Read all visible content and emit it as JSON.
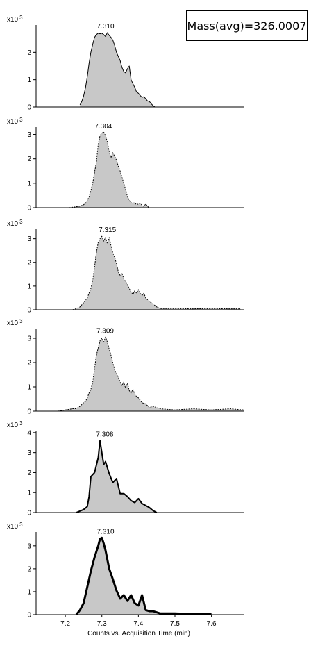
{
  "annotation": "Mass(avg)=326.0007",
  "chart_data": [
    {
      "type": "area",
      "peak_label": "7.310",
      "multiplier_label": "x10",
      "multiplier_exp": "3",
      "ylim": [
        0,
        3
      ],
      "y_ticks": [
        "0",
        "1",
        "2"
      ],
      "line_style": "solid",
      "line_weight": "thin",
      "x": [
        7.24,
        7.245,
        7.25,
        7.255,
        7.26,
        7.265,
        7.27,
        7.275,
        7.28,
        7.285,
        7.29,
        7.295,
        7.3,
        7.305,
        7.31,
        7.315,
        7.32,
        7.325,
        7.33,
        7.335,
        7.34,
        7.345,
        7.35,
        7.355,
        7.36,
        7.365,
        7.37,
        7.375,
        7.38,
        7.385,
        7.39,
        7.395,
        7.4,
        7.405,
        7.41,
        7.415,
        7.42,
        7.425,
        7.43,
        7.435,
        7.44,
        7.445
      ],
      "y": [
        0.08,
        0.2,
        0.4,
        0.7,
        1.1,
        1.6,
        2.0,
        2.3,
        2.55,
        2.65,
        2.7,
        2.68,
        2.7,
        2.65,
        2.58,
        2.72,
        2.62,
        2.55,
        2.45,
        2.25,
        2.0,
        1.85,
        1.7,
        1.45,
        1.3,
        1.25,
        1.4,
        1.5,
        1.0,
        0.85,
        0.72,
        0.55,
        0.5,
        0.42,
        0.35,
        0.38,
        0.3,
        0.22,
        0.2,
        0.12,
        0.05,
        0.0
      ]
    },
    {
      "type": "area",
      "peak_label": "7.304",
      "multiplier_label": "x10",
      "multiplier_exp": "3",
      "ylim": [
        0,
        3.3
      ],
      "y_ticks": [
        "0",
        "1",
        "2",
        "3"
      ],
      "line_style": "dotted",
      "line_weight": "thin",
      "x": [
        7.21,
        7.22,
        7.23,
        7.24,
        7.25,
        7.255,
        7.26,
        7.265,
        7.27,
        7.275,
        7.28,
        7.285,
        7.29,
        7.295,
        7.3,
        7.305,
        7.31,
        7.315,
        7.32,
        7.325,
        7.33,
        7.335,
        7.34,
        7.345,
        7.35,
        7.355,
        7.36,
        7.365,
        7.37,
        7.375,
        7.38,
        7.385,
        7.39,
        7.395,
        7.4,
        7.405,
        7.41,
        7.415,
        7.42,
        7.425,
        7.43,
        7.46
      ],
      "y": [
        0.0,
        0.02,
        0.04,
        0.06,
        0.12,
        0.18,
        0.28,
        0.45,
        0.7,
        1.0,
        1.45,
        1.85,
        2.6,
        2.95,
        3.05,
        3.1,
        2.95,
        2.7,
        2.3,
        2.05,
        2.25,
        2.1,
        1.95,
        1.7,
        1.5,
        1.25,
        1.0,
        0.75,
        0.45,
        0.3,
        0.2,
        0.18,
        0.2,
        0.12,
        0.15,
        0.18,
        0.1,
        0.05,
        0.15,
        0.05,
        0.0,
        0.0
      ]
    },
    {
      "type": "area",
      "peak_label": "7.315",
      "multiplier_label": "x10",
      "multiplier_exp": "3",
      "ylim": [
        0,
        3.4
      ],
      "y_ticks": [
        "0",
        "1",
        "2",
        "3"
      ],
      "line_style": "dotted",
      "line_weight": "thin",
      "x": [
        7.22,
        7.23,
        7.24,
        7.25,
        7.26,
        7.265,
        7.27,
        7.275,
        7.28,
        7.285,
        7.29,
        7.295,
        7.3,
        7.305,
        7.31,
        7.315,
        7.32,
        7.325,
        7.33,
        7.335,
        7.34,
        7.345,
        7.35,
        7.355,
        7.36,
        7.365,
        7.37,
        7.375,
        7.38,
        7.385,
        7.39,
        7.395,
        7.4,
        7.405,
        7.41,
        7.415,
        7.42,
        7.43,
        7.44,
        7.45,
        7.46,
        7.5,
        7.55,
        7.6,
        7.65,
        7.68
      ],
      "y": [
        0.0,
        0.05,
        0.12,
        0.3,
        0.5,
        0.7,
        0.9,
        1.25,
        1.8,
        2.4,
        2.85,
        3.0,
        3.1,
        2.9,
        3.05,
        2.8,
        3.05,
        2.7,
        2.4,
        2.2,
        1.95,
        1.6,
        1.45,
        1.55,
        1.3,
        1.2,
        1.05,
        0.9,
        0.75,
        0.65,
        0.8,
        0.7,
        0.85,
        0.7,
        0.6,
        0.7,
        0.5,
        0.35,
        0.25,
        0.12,
        0.05,
        0.05,
        0.04,
        0.05,
        0.04,
        0.04
      ]
    },
    {
      "type": "area",
      "peak_label": "7.309",
      "multiplier_label": "x10",
      "multiplier_exp": "3",
      "ylim": [
        0,
        3.4
      ],
      "y_ticks": [
        "0",
        "1",
        "2",
        "3"
      ],
      "line_style": "dotted",
      "line_weight": "thin",
      "x": [
        7.18,
        7.2,
        7.22,
        7.23,
        7.24,
        7.25,
        7.255,
        7.26,
        7.265,
        7.27,
        7.275,
        7.28,
        7.285,
        7.29,
        7.295,
        7.3,
        7.305,
        7.31,
        7.315,
        7.32,
        7.325,
        7.33,
        7.335,
        7.34,
        7.345,
        7.35,
        7.355,
        7.36,
        7.365,
        7.37,
        7.375,
        7.38,
        7.385,
        7.39,
        7.395,
        7.4,
        7.41,
        7.42,
        7.43,
        7.44,
        7.46,
        7.5,
        7.55,
        7.6,
        7.65,
        7.69
      ],
      "y": [
        0.0,
        0.05,
        0.1,
        0.1,
        0.2,
        0.35,
        0.4,
        0.55,
        0.75,
        0.9,
        1.2,
        1.75,
        2.3,
        2.6,
        2.9,
        3.0,
        2.85,
        3.05,
        2.85,
        2.55,
        2.3,
        2.0,
        1.7,
        1.55,
        1.4,
        1.2,
        1.05,
        1.2,
        0.95,
        1.15,
        0.85,
        0.75,
        0.9,
        0.7,
        0.6,
        0.55,
        0.35,
        0.3,
        0.15,
        0.2,
        0.1,
        0.05,
        0.1,
        0.05,
        0.1,
        0.05
      ]
    },
    {
      "type": "area",
      "peak_label": "7.308",
      "multiplier_label": "x10",
      "multiplier_exp": "3",
      "ylim": [
        0,
        4.1
      ],
      "y_ticks": [
        "0",
        "1",
        "2",
        "3",
        "4"
      ],
      "line_style": "solid",
      "line_weight": "medium",
      "x": [
        7.23,
        7.25,
        7.26,
        7.265,
        7.27,
        7.28,
        7.29,
        7.295,
        7.3,
        7.305,
        7.31,
        7.32,
        7.33,
        7.34,
        7.35,
        7.36,
        7.37,
        7.38,
        7.39,
        7.4,
        7.41,
        7.42,
        7.43,
        7.44,
        7.45
      ],
      "y": [
        0.0,
        0.15,
        0.3,
        0.8,
        1.8,
        2.0,
        2.75,
        3.6,
        3.0,
        2.4,
        2.55,
        1.95,
        1.5,
        1.7,
        0.95,
        0.95,
        0.8,
        0.6,
        0.5,
        0.7,
        0.45,
        0.35,
        0.25,
        0.1,
        0.0
      ]
    },
    {
      "type": "area",
      "peak_label": "7.310",
      "multiplier_label": "x10",
      "multiplier_exp": "3",
      "ylim": [
        0,
        3.6
      ],
      "y_ticks": [
        "0",
        "1",
        "2",
        "3"
      ],
      "line_style": "solid",
      "line_weight": "bold",
      "x": [
        7.23,
        7.24,
        7.25,
        7.26,
        7.27,
        7.28,
        7.29,
        7.295,
        7.3,
        7.305,
        7.31,
        7.32,
        7.33,
        7.34,
        7.35,
        7.36,
        7.37,
        7.38,
        7.39,
        7.4,
        7.41,
        7.42,
        7.43,
        7.44,
        7.46,
        7.5,
        7.55,
        7.6
      ],
      "y": [
        0.0,
        0.2,
        0.5,
        1.2,
        1.9,
        2.5,
        3.0,
        3.3,
        3.35,
        3.1,
        2.8,
        2.0,
        1.55,
        1.05,
        0.7,
        0.85,
        0.6,
        0.85,
        0.5,
        0.4,
        0.85,
        0.2,
        0.15,
        0.15,
        0.05,
        0.05,
        0.03,
        0.02
      ]
    }
  ],
  "x_axis": {
    "xlim": [
      7.12,
      7.69
    ],
    "ticks": [
      7.2,
      7.3,
      7.4,
      7.5,
      7.6
    ],
    "tick_labels": [
      "7.2",
      "7.3",
      "7.4",
      "7.5",
      "7.6"
    ],
    "label": "Counts vs. Acquisition Time (min)"
  },
  "colors": {
    "fill": "#c8c8c8",
    "stroke": "#000000",
    "axis": "#000000"
  }
}
